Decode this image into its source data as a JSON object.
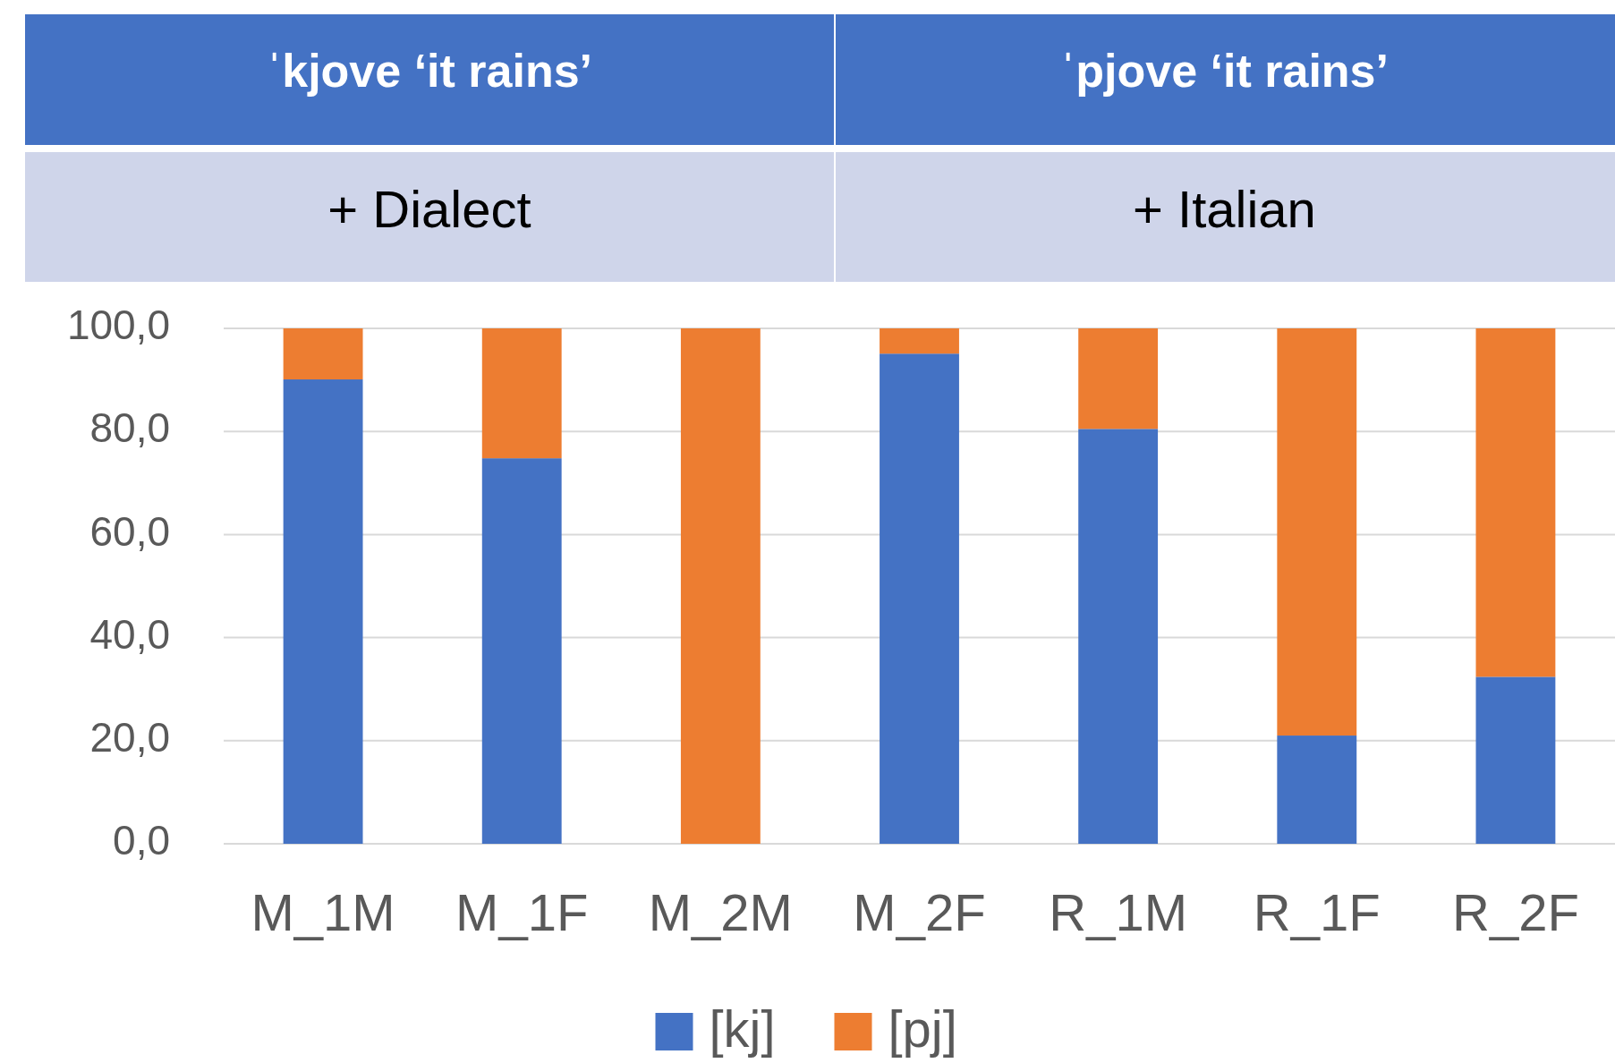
{
  "chart_data": {
    "type": "bar",
    "stacked": true,
    "categories": [
      "M_1M",
      "M_1F",
      "M_2M",
      "M_2F",
      "R_1M",
      "R_1F",
      "R_2F"
    ],
    "series": [
      {
        "name": "[kj]",
        "color": "#4472c4",
        "values": [
          90.1,
          74.8,
          0,
          95.1,
          80.5,
          21.0,
          32.4
        ]
      },
      {
        "name": "[pj]",
        "color": "#ed7d31",
        "values": [
          9.9,
          25.2,
          100,
          4.9,
          19.5,
          79.0,
          67.6
        ]
      }
    ],
    "ylim": [
      0,
      100
    ],
    "yticks": [
      {
        "value": 0,
        "label": "0,0"
      },
      {
        "value": 20,
        "label": "20,0"
      },
      {
        "value": 40,
        "label": "40,0"
      },
      {
        "value": 60,
        "label": "60,0"
      },
      {
        "value": 80,
        "label": "80,0"
      },
      {
        "value": 100,
        "label": "100,0"
      }
    ],
    "grid": "y",
    "legend": "bottom",
    "annotations": [
      "ˈkjove ‘it rains’",
      "ˈpjove ‘it rains’",
      "+ Dialect",
      "+ Italian"
    ]
  }
}
